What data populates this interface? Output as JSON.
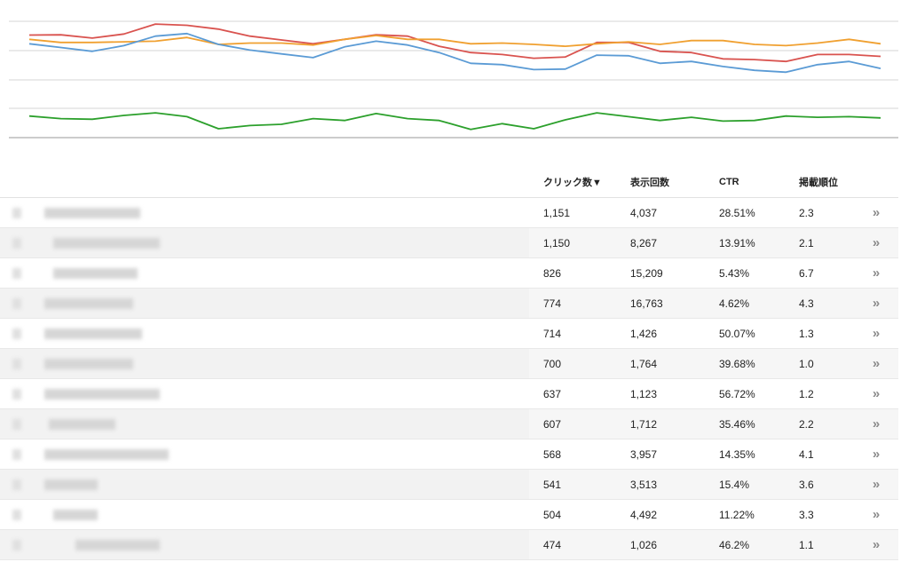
{
  "chart_data": {
    "type": "line",
    "series": [
      {
        "color": "#d9534f",
        "values": [
          39.5,
          39.2,
          42.9,
          38.3,
          27.1,
          28.5,
          32.8,
          40.7,
          45.0,
          49.3,
          44.3,
          39.2,
          40.7,
          52.1,
          59.2,
          61.4,
          65.6,
          64.2,
          47.8,
          47.8,
          57.8,
          59.2,
          66.3,
          67.1,
          69.2,
          61.4,
          61.4,
          63.5
        ]
      },
      {
        "color": "#f0a030",
        "values": [
          44.3,
          47.8,
          47.8,
          47.1,
          46.4,
          42.2,
          50.0,
          48.5,
          48.5,
          50.7,
          44.3,
          40.0,
          44.3,
          44.3,
          49.3,
          48.5,
          50.0,
          52.1,
          49.3,
          47.1,
          50.0,
          45.7,
          45.7,
          50.0,
          51.4,
          48.5,
          44.3,
          49.3
        ]
      },
      {
        "color": "#5b9bd5",
        "values": [
          49.3,
          53.5,
          57.8,
          51.4,
          40.7,
          37.8,
          50.0,
          56.4,
          60.7,
          64.9,
          52.8,
          46.4,
          50.7,
          59.2,
          71.3,
          72.8,
          78.4,
          77.8,
          62.1,
          62.8,
          71.3,
          69.2,
          74.9,
          79.2,
          81.3,
          72.8,
          69.2,
          77.1
        ]
      },
      {
        "color": "#2ca02c",
        "values": [
          130.7,
          133.6,
          134.3,
          130.0,
          127.1,
          131.4,
          145.0,
          141.4,
          140.0,
          133.6,
          135.7,
          127.9,
          133.6,
          135.7,
          145.7,
          139.3,
          145.0,
          135.0,
          127.1,
          131.4,
          135.7,
          132.1,
          136.4,
          135.7,
          130.7,
          132.1,
          131.4,
          132.8
        ]
      }
    ]
  },
  "table": {
    "headers": {
      "clicks": "クリック数▼",
      "impressions": "表示回数",
      "ctr": "CTR",
      "position": "掲載順位"
    },
    "rows": [
      {
        "clicks": "1,151",
        "impressions": "4,037",
        "ctr": "28.51%",
        "position": "2.3"
      },
      {
        "clicks": "1,150",
        "impressions": "8,267",
        "ctr": "13.91%",
        "position": "2.1"
      },
      {
        "clicks": "826",
        "impressions": "15,209",
        "ctr": "5.43%",
        "position": "6.7"
      },
      {
        "clicks": "774",
        "impressions": "16,763",
        "ctr": "4.62%",
        "position": "4.3"
      },
      {
        "clicks": "714",
        "impressions": "1,426",
        "ctr": "50.07%",
        "position": "1.3"
      },
      {
        "clicks": "700",
        "impressions": "1,764",
        "ctr": "39.68%",
        "position": "1.0"
      },
      {
        "clicks": "637",
        "impressions": "1,123",
        "ctr": "56.72%",
        "position": "1.2"
      },
      {
        "clicks": "607",
        "impressions": "1,712",
        "ctr": "35.46%",
        "position": "2.2"
      },
      {
        "clicks": "568",
        "impressions": "3,957",
        "ctr": "14.35%",
        "position": "4.1"
      },
      {
        "clicks": "541",
        "impressions": "3,513",
        "ctr": "15.4%",
        "position": "3.6"
      },
      {
        "clicks": "504",
        "impressions": "4,492",
        "ctr": "11.22%",
        "position": "3.3"
      },
      {
        "clicks": "474",
        "impressions": "1,026",
        "ctr": "46.2%",
        "position": "1.1"
      }
    ],
    "row_action_icon": "double-chevron-right-icon",
    "row_action_glyph": "»"
  }
}
